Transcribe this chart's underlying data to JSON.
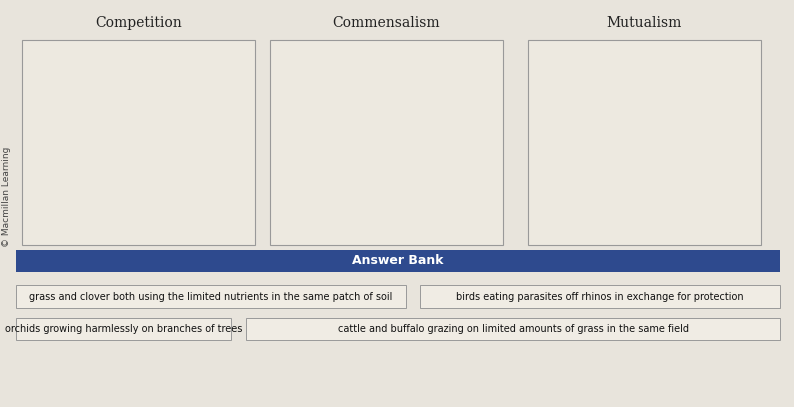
{
  "bg_color": "#e8e4dc",
  "columns": [
    "Competition",
    "Commensalism",
    "Mutualism"
  ],
  "col_title_fontsize": 10,
  "col_title_color": "#222222",
  "box_bg_color": "#ede9e0",
  "box_border_color": "#999999",
  "answer_bank_bg": "#2e4a8e",
  "answer_bank_text": "Answer Bank",
  "answer_bank_text_color": "#ffffff",
  "answer_bank_fontsize": 9,
  "answer_items": [
    "grass and clover both using the limited nutrients in the same patch of soil",
    "birds eating parasites off rhinos in exchange for protection",
    "orchids growing harmlessly on branches of trees",
    "cattle and buffalo grazing on limited amounts of grass in the same field"
  ],
  "answer_item_bg": "#f0ece4",
  "answer_item_border": "#999999",
  "answer_item_fontsize": 7.0,
  "sidebar_text": "© Macmillan Learning",
  "sidebar_color": "#444444",
  "sidebar_fontsize": 6.5,
  "fig_width": 7.94,
  "fig_height": 4.07,
  "dpi": 100
}
